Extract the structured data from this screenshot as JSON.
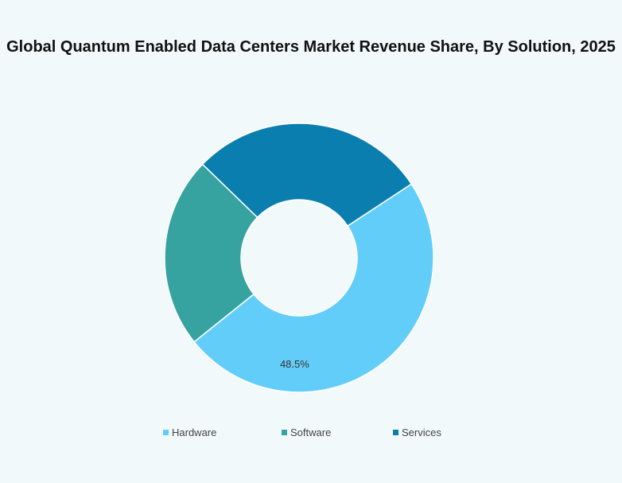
{
  "chart_data": {
    "type": "pie",
    "variant": "donut",
    "title": "Global Quantum Enabled Data Centers Market Revenue Share, By Solution, 2025",
    "categories": [
      "Hardware",
      "Software",
      "Services"
    ],
    "values": [
      48.5,
      23.0,
      28.5
    ],
    "unit": "%",
    "colors": [
      "#63cdf9",
      "#36a3a1",
      "#0a7eaf"
    ],
    "data_labels": [
      "48.5%",
      "",
      ""
    ],
    "legend_position": "bottom"
  }
}
